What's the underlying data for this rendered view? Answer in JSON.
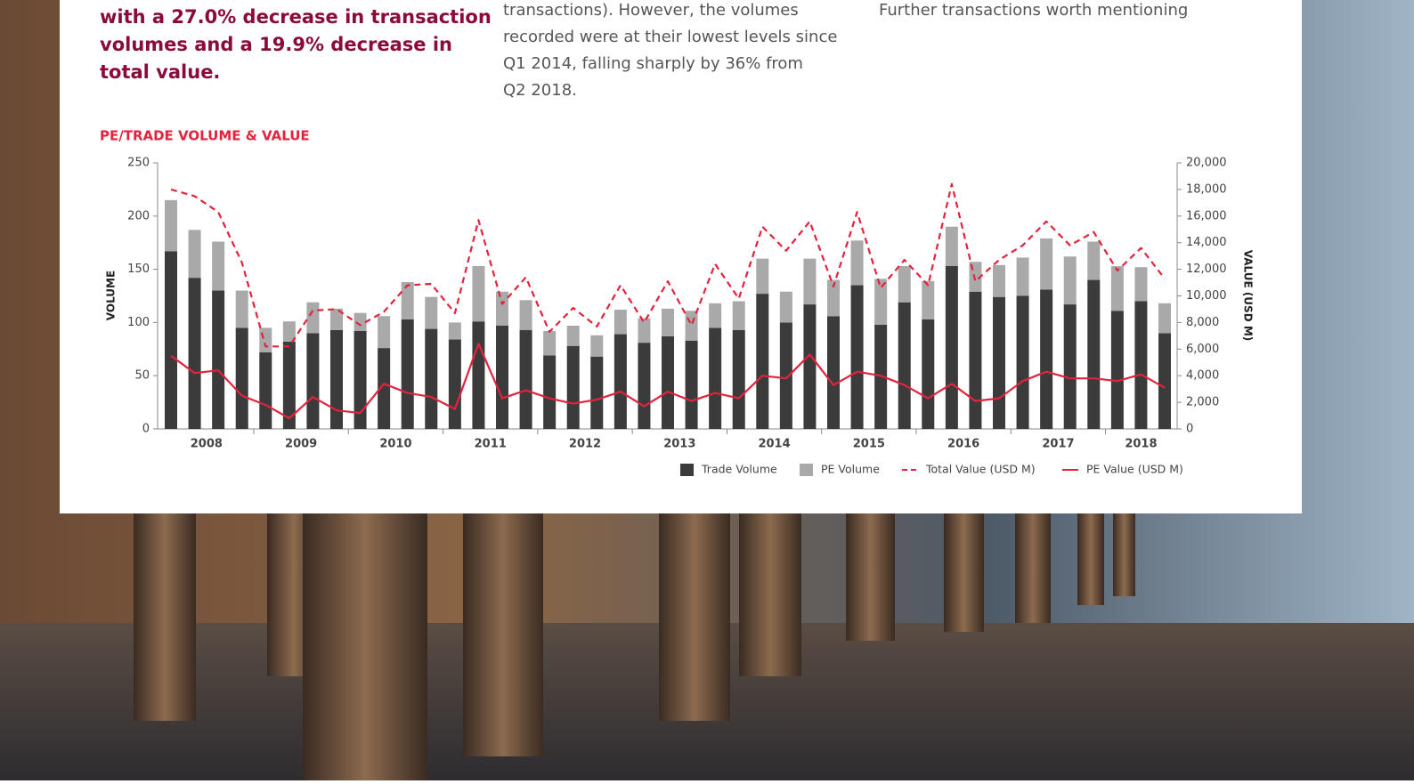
{
  "page": {
    "intro_lines": [
      "with a 27.0% decrease in transaction",
      "volumes and a 19.9% decrease in",
      "total value."
    ],
    "middle_lines": [
      "transactions). However, the volumes",
      "recorded were at their lowest levels since",
      "Q1 2014, falling sharply by 36% from",
      "Q2 2018."
    ],
    "right_lines": [
      "Further transactions worth mentioning"
    ]
  },
  "chart_data": {
    "type": "bar",
    "title": "PE/TRADE VOLUME & VALUE",
    "y_label": "VOLUME",
    "y2_label": "VALUE (USD M)",
    "categories": [
      "2008",
      null,
      null,
      null,
      "2009",
      null,
      null,
      null,
      "2010",
      null,
      null,
      null,
      "2011",
      null,
      null,
      null,
      "2012",
      null,
      null,
      null,
      "2013",
      null,
      null,
      null,
      "2014",
      null,
      null,
      null,
      "2015",
      null,
      null,
      null,
      "2016",
      null,
      null,
      null,
      "2017",
      null,
      null,
      null,
      "2018",
      null,
      null
    ],
    "ylim": [
      0,
      250
    ],
    "yticks": [
      0,
      50,
      100,
      150,
      200,
      250
    ],
    "y2lim": [
      0,
      20000
    ],
    "y2ticks": [
      0,
      {
        "value": 2000,
        "label": "2,000"
      },
      {
        "value": 4000,
        "label": "4,000"
      },
      {
        "value": 6000,
        "label": "6,000"
      },
      {
        "value": 8000,
        "label": "8,000"
      },
      {
        "value": 10000,
        "label": "10,000"
      },
      {
        "value": 12000,
        "label": "12,000"
      },
      {
        "value": 14000,
        "label": "14,000"
      },
      {
        "value": 16000,
        "label": "16,000"
      },
      {
        "value": 18000,
        "label": "18,000"
      },
      {
        "value": 20000,
        "label": "20,000"
      }
    ],
    "stacked": true,
    "series": [
      {
        "name": "Trade Volume",
        "type": "bar",
        "color": "#3b3b3b",
        "values": [
          167,
          142,
          130,
          95,
          72,
          82,
          90,
          93,
          92,
          76,
          103,
          94,
          84,
          101,
          97,
          93,
          69,
          78,
          68,
          89,
          81,
          87,
          83,
          95,
          93,
          127,
          100,
          117,
          106,
          135,
          98,
          119,
          103,
          153,
          129,
          124,
          125,
          131,
          117,
          140,
          111,
          120,
          90
        ]
      },
      {
        "name": "PE Volume",
        "type": "bar",
        "color": "#a9a9a9",
        "values": [
          48,
          45,
          46,
          35,
          23,
          19,
          29,
          20,
          17,
          30,
          35,
          30,
          16,
          52,
          32,
          28,
          23,
          19,
          20,
          23,
          23,
          26,
          28,
          23,
          27,
          33,
          29,
          43,
          34,
          42,
          43,
          34,
          36,
          37,
          28,
          30,
          36,
          48,
          45,
          36,
          42,
          32,
          28
        ]
      },
      {
        "name": "Total Value (USD M)",
        "type": "line",
        "axis": "y2",
        "dashed": true,
        "color": "#e3223d",
        "values": [
          18000,
          17500,
          16300,
          12500,
          6200,
          6200,
          8900,
          9000,
          7800,
          8800,
          10800,
          10900,
          8700,
          15700,
          9400,
          11400,
          7300,
          9100,
          7700,
          10800,
          8000,
          11100,
          7800,
          12400,
          9800,
          15200,
          13400,
          15600,
          10700,
          16300,
          10600,
          12700,
          10800,
          18400,
          11100,
          12700,
          13800,
          15600,
          13800,
          14800,
          11900,
          13600,
          11300
        ]
      },
      {
        "name": "PE Value (USD M)",
        "type": "line",
        "axis": "y2",
        "dashed": false,
        "color": "#e3223d",
        "values": [
          5500,
          4200,
          4400,
          2500,
          1800,
          800,
          2400,
          1400,
          1200,
          3400,
          2700,
          2400,
          1500,
          6400,
          2300,
          2900,
          2300,
          1900,
          2200,
          2800,
          1700,
          2800,
          2100,
          2700,
          2300,
          4000,
          3800,
          5600,
          3300,
          4300,
          4000,
          3300,
          2300,
          3400,
          2100,
          2300,
          3600,
          4300,
          3800,
          3800,
          3600,
          4100,
          3100
        ]
      }
    ]
  }
}
